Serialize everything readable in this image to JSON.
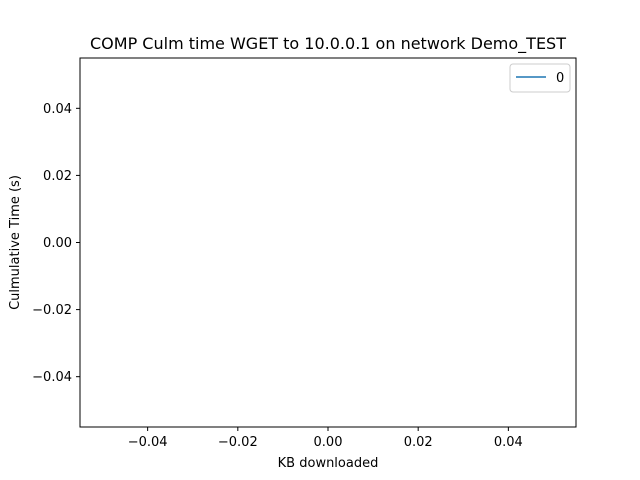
{
  "chart_data": {
    "type": "line",
    "title": "COMP Culm time WGET to 10.0.0.1 on network Demo_TEST",
    "xlabel": "KB downloaded",
    "ylabel": "Culmulative Time (s)",
    "xlim": [
      -0.055,
      0.055
    ],
    "ylim": [
      -0.055,
      0.055
    ],
    "x_ticks": [
      -0.04,
      -0.02,
      0.0,
      0.02,
      0.04
    ],
    "x_tick_labels": [
      "−0.04",
      "−0.02",
      "0.00",
      "0.02",
      "0.04"
    ],
    "y_ticks": [
      -0.04,
      -0.02,
      0.0,
      0.02,
      0.04
    ],
    "y_tick_labels": [
      "−0.04",
      "−0.02",
      "0.00",
      "0.02",
      "0.04"
    ],
    "grid": false,
    "legend_position": "upper right",
    "series": [
      {
        "name": "0",
        "color": "#1f77b4",
        "x": [],
        "y": []
      }
    ]
  }
}
